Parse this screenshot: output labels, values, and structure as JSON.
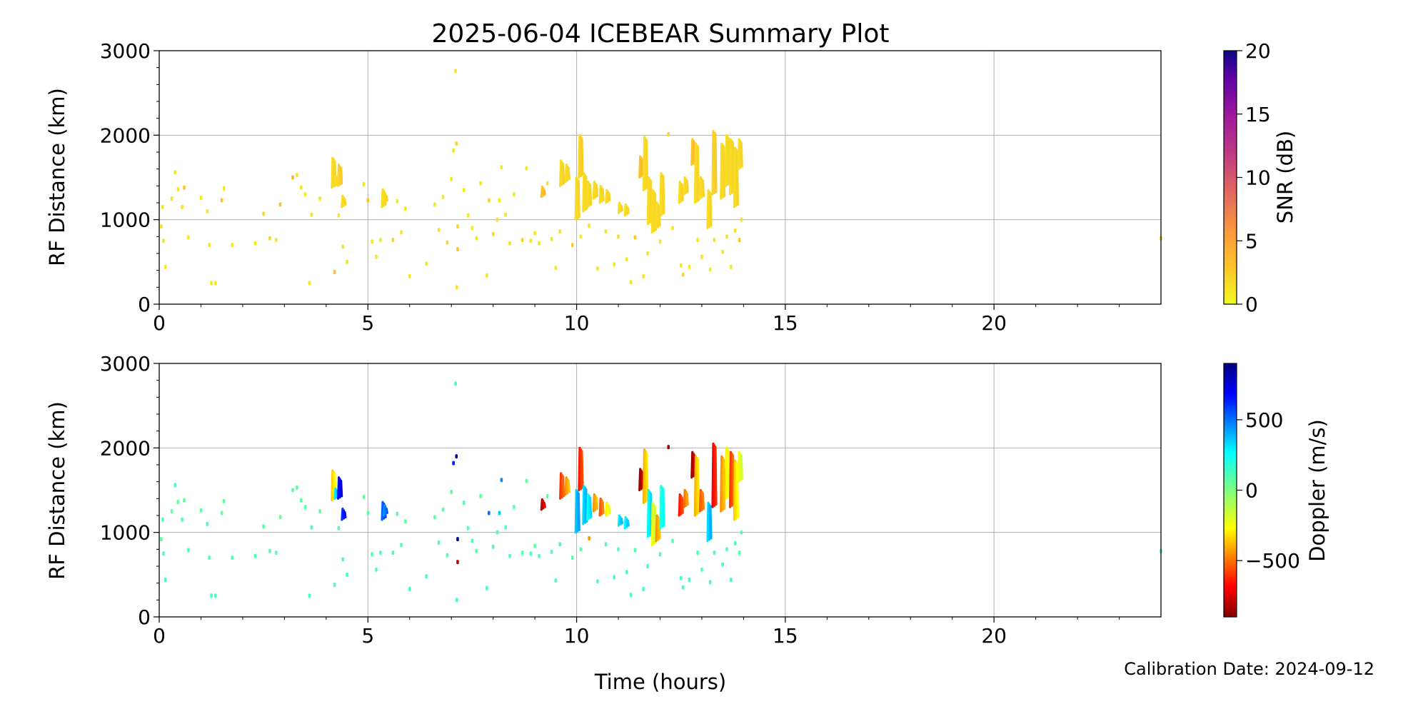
{
  "chart_data": [
    {
      "type": "scatter",
      "title": "2025-06-04 ICEBEAR Summary Plot",
      "xlabel": "Time (hours)",
      "ylabel": "RF Distance (km)",
      "xlim": [
        0,
        24
      ],
      "ylim": [
        0,
        3000
      ],
      "xticks": [
        "0",
        "5",
        "10",
        "15",
        "20"
      ],
      "yticks": [
        "0",
        "1000",
        "2000",
        "3000"
      ],
      "grid": true,
      "color_by": "snr",
      "colorbar": {
        "label": "SNR (dB)",
        "range": [
          0,
          20
        ],
        "ticks": [
          "0",
          "5",
          "10",
          "15",
          "20"
        ],
        "colormap": "plasma_r"
      }
    },
    {
      "type": "scatter",
      "title": "",
      "xlabel": "Time (hours)",
      "ylabel": "RF Distance (km)",
      "xlim": [
        0,
        24
      ],
      "ylim": [
        0,
        3000
      ],
      "xticks": [
        "0",
        "5",
        "10",
        "15",
        "20"
      ],
      "yticks": [
        "0",
        "1000",
        "2000",
        "3000"
      ],
      "grid": true,
      "color_by": "doppler",
      "colorbar": {
        "label": "Doppler (m/s)",
        "range": [
          -900,
          900
        ],
        "ticks": [
          "−500",
          "0",
          "500"
        ],
        "tick_values": [
          -500,
          0,
          500
        ],
        "colormap": "jet_r"
      }
    }
  ],
  "streaks_columns": [
    "time_h",
    "range_lo_km",
    "range_hi_km",
    "snr_db",
    "doppler_ms"
  ],
  "streaks": [
    [
      4.18,
      1380,
      1730,
      1.5,
      -350
    ],
    [
      4.25,
      1400,
      1520,
      1.5,
      300
    ],
    [
      4.33,
      1400,
      1650,
      2,
      650
    ],
    [
      4.42,
      1150,
      1280,
      1.5,
      600
    ],
    [
      5.38,
      1150,
      1360,
      1.5,
      520
    ],
    [
      5.42,
      1200,
      1320,
      1.5,
      450
    ],
    [
      9.2,
      1270,
      1390,
      3,
      -800
    ],
    [
      9.65,
      1400,
      1700,
      1.5,
      -600
    ],
    [
      9.78,
      1450,
      1650,
      1.5,
      -450
    ],
    [
      10.02,
      1000,
      1500,
      1.5,
      350
    ],
    [
      10.1,
      1500,
      2000,
      2,
      -650
    ],
    [
      10.2,
      1100,
      1550,
      1.5,
      320
    ],
    [
      10.3,
      1150,
      1450,
      1.5,
      250
    ],
    [
      10.45,
      1250,
      1450,
      1.5,
      -450
    ],
    [
      10.6,
      1200,
      1400,
      1.5,
      -550
    ],
    [
      10.75,
      1200,
      1350,
      1.5,
      -300
    ],
    [
      11.05,
      1080,
      1200,
      1.5,
      300
    ],
    [
      11.2,
      1050,
      1180,
      1.5,
      280
    ],
    [
      11.55,
      1500,
      1750,
      3,
      -850
    ],
    [
      11.65,
      1350,
      1980,
      1.5,
      -400
    ],
    [
      11.75,
      950,
      1500,
      1.5,
      250
    ],
    [
      11.85,
      850,
      1350,
      1.5,
      -250
    ],
    [
      11.95,
      900,
      1200,
      1.5,
      -450
    ],
    [
      12.05,
      1050,
      1550,
      1.5,
      180
    ],
    [
      12.5,
      1200,
      1450,
      1.5,
      -650
    ],
    [
      12.62,
      1300,
      1500,
      1.5,
      -500
    ],
    [
      12.8,
      1650,
      1950,
      3,
      -850
    ],
    [
      12.88,
      1200,
      1900,
      1.5,
      -400
    ],
    [
      13.0,
      1250,
      1500,
      1.5,
      -550
    ],
    [
      13.18,
      900,
      1350,
      1.5,
      320
    ],
    [
      13.3,
      1300,
      2050,
      2,
      -700
    ],
    [
      13.5,
      1250,
      1900,
      1.5,
      -450
    ],
    [
      13.62,
      1400,
      2000,
      1.5,
      -300
    ],
    [
      13.72,
      1300,
      1950,
      1.5,
      -600
    ],
    [
      13.82,
      1150,
      1850,
      1.5,
      -350
    ],
    [
      13.92,
      1600,
      1950,
      1.5,
      -250
    ]
  ],
  "points_columns": [
    "time_h",
    "range_km",
    "snr_db",
    "doppler_ms"
  ],
  "points": [
    [
      0.05,
      920,
      1,
      80
    ],
    [
      0.08,
      1150,
      1,
      90
    ],
    [
      0.1,
      750,
      1,
      100
    ],
    [
      0.15,
      440,
      1,
      120
    ],
    [
      0.3,
      1250,
      1,
      80
    ],
    [
      0.38,
      1560,
      1,
      110
    ],
    [
      0.45,
      1360,
      1,
      60
    ],
    [
      0.55,
      1150,
      1,
      90
    ],
    [
      0.6,
      1380,
      3,
      70
    ],
    [
      0.7,
      790,
      1,
      100
    ],
    [
      1.0,
      1260,
      1,
      80
    ],
    [
      1.15,
      1100,
      1,
      90
    ],
    [
      1.2,
      700,
      1,
      100
    ],
    [
      1.25,
      250,
      1,
      120
    ],
    [
      1.35,
      250,
      1,
      120
    ],
    [
      1.5,
      1230,
      3,
      80
    ],
    [
      1.55,
      1370,
      1,
      70
    ],
    [
      1.75,
      700,
      1,
      100
    ],
    [
      2.3,
      720,
      1,
      100
    ],
    [
      2.5,
      1070,
      2,
      80
    ],
    [
      2.65,
      780,
      2,
      90
    ],
    [
      2.8,
      760,
      1,
      100
    ],
    [
      2.9,
      1180,
      3,
      60
    ],
    [
      3.2,
      1500,
      4,
      70
    ],
    [
      3.3,
      1530,
      1,
      60
    ],
    [
      3.4,
      1380,
      1,
      80
    ],
    [
      3.5,
      1300,
      1,
      90
    ],
    [
      3.6,
      250,
      1,
      120
    ],
    [
      3.65,
      1060,
      1,
      100
    ],
    [
      3.85,
      1250,
      1,
      70
    ],
    [
      4.2,
      380,
      3,
      100
    ],
    [
      4.3,
      1050,
      1,
      100
    ],
    [
      4.4,
      680,
      1,
      110
    ],
    [
      4.5,
      500,
      1,
      120
    ],
    [
      4.9,
      1420,
      1,
      60
    ],
    [
      5.0,
      1230,
      3,
      80
    ],
    [
      5.1,
      740,
      1,
      100
    ],
    [
      5.2,
      560,
      1,
      110
    ],
    [
      5.3,
      760,
      1,
      100
    ],
    [
      5.6,
      760,
      2,
      90
    ],
    [
      5.7,
      1220,
      1,
      70
    ],
    [
      5.8,
      850,
      1,
      100
    ],
    [
      5.9,
      1130,
      1,
      80
    ],
    [
      6.0,
      330,
      1,
      120
    ],
    [
      6.4,
      480,
      1,
      110
    ],
    [
      6.6,
      1180,
      1,
      80
    ],
    [
      6.7,
      880,
      1,
      100
    ],
    [
      6.8,
      1270,
      1,
      80
    ],
    [
      6.9,
      730,
      2,
      90
    ],
    [
      7.0,
      1480,
      1,
      70
    ],
    [
      7.05,
      1820,
      1,
      650
    ],
    [
      7.1,
      2760,
      1,
      120
    ],
    [
      7.12,
      1900,
      2,
      850
    ],
    [
      7.13,
      200,
      1,
      120
    ],
    [
      7.15,
      650,
      3,
      -800
    ],
    [
      7.15,
      920,
      2,
      850
    ],
    [
      7.3,
      1350,
      1,
      80
    ],
    [
      7.4,
      1050,
      1,
      100
    ],
    [
      7.5,
      900,
      1,
      100
    ],
    [
      7.6,
      780,
      1,
      90
    ],
    [
      7.7,
      1430,
      1,
      80
    ],
    [
      7.85,
      340,
      1,
      120
    ],
    [
      7.9,
      1230,
      2,
      500
    ],
    [
      8.0,
      830,
      2,
      90
    ],
    [
      8.1,
      1000,
      1,
      100
    ],
    [
      8.15,
      1230,
      1,
      350
    ],
    [
      8.2,
      1620,
      1,
      450
    ],
    [
      8.3,
      1060,
      1,
      100
    ],
    [
      8.4,
      720,
      1,
      110
    ],
    [
      8.5,
      1300,
      1,
      80
    ],
    [
      8.7,
      760,
      2,
      100
    ],
    [
      8.8,
      1610,
      1,
      70
    ],
    [
      8.9,
      750,
      1,
      100
    ],
    [
      9.0,
      840,
      1,
      100
    ],
    [
      9.1,
      720,
      1,
      100
    ],
    [
      9.3,
      1430,
      1,
      80
    ],
    [
      9.4,
      770,
      1,
      100
    ],
    [
      9.5,
      430,
      1,
      120
    ],
    [
      9.6,
      860,
      1,
      100
    ],
    [
      9.9,
      700,
      3,
      100
    ],
    [
      10.1,
      800,
      1,
      100
    ],
    [
      10.3,
      930,
      1,
      -450
    ],
    [
      10.5,
      420,
      1,
      120
    ],
    [
      10.7,
      860,
      1,
      100
    ],
    [
      10.9,
      470,
      1,
      120
    ],
    [
      11.0,
      800,
      1,
      100
    ],
    [
      11.2,
      530,
      1,
      120
    ],
    [
      11.3,
      260,
      1,
      120
    ],
    [
      11.4,
      790,
      3,
      90
    ],
    [
      11.6,
      330,
      1,
      120
    ],
    [
      11.7,
      600,
      1,
      110
    ],
    [
      12.0,
      740,
      1,
      100
    ],
    [
      12.2,
      2010,
      2,
      -850
    ],
    [
      12.3,
      900,
      1,
      100
    ],
    [
      12.5,
      460,
      1,
      120
    ],
    [
      12.55,
      350,
      2,
      120
    ],
    [
      12.7,
      440,
      1,
      120
    ],
    [
      12.9,
      760,
      1,
      100
    ],
    [
      13.0,
      560,
      1,
      120
    ],
    [
      13.2,
      410,
      1,
      120
    ],
    [
      13.3,
      760,
      1,
      100
    ],
    [
      13.5,
      620,
      1,
      110
    ],
    [
      13.6,
      800,
      1,
      100
    ],
    [
      13.7,
      440,
      1,
      120
    ],
    [
      13.8,
      870,
      1,
      100
    ],
    [
      13.9,
      760,
      3,
      90
    ],
    [
      13.95,
      1000,
      1,
      90
    ],
    [
      24.0,
      780,
      2,
      80
    ]
  ],
  "footer": {
    "calibration": "Calibration Date: 2024-09-12"
  }
}
